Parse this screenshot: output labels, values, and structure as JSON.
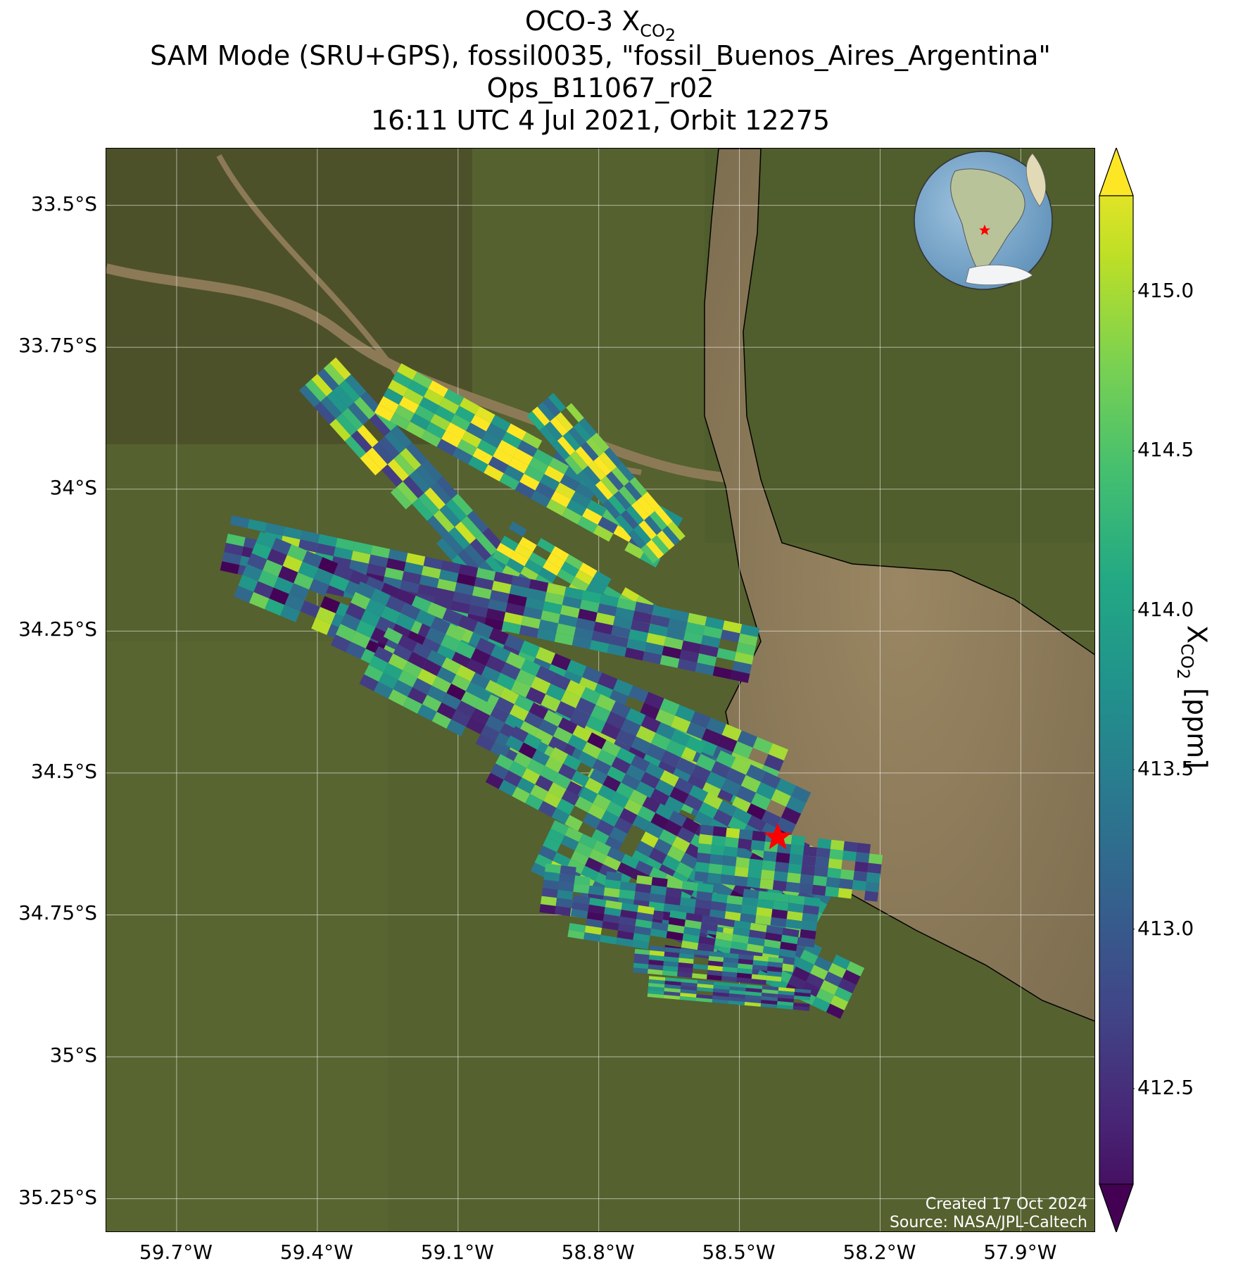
{
  "title": {
    "line1_prefix": "OCO-3 X",
    "line1_sub": "CO",
    "line1_sub2": "2",
    "line2": "SAM Mode (SRU+GPS), fossil0035, \"fossil_Buenos_Aires_Argentina\"",
    "line3": "Ops_B11067_r02",
    "line4": "16:11 UTC 4 Jul 2021, Orbit 12275"
  },
  "map": {
    "lat_ticks": [
      "33.5°S",
      "33.75°S",
      "34°S",
      "34.25°S",
      "34.5°S",
      "34.75°S",
      "35°S",
      "35.25°S"
    ],
    "lon_ticks": [
      "59.7°W",
      "59.4°W",
      "59.1°W",
      "58.8°W",
      "58.5°W",
      "58.2°W",
      "57.9°W"
    ],
    "lat_values": [
      -33.5,
      -33.75,
      -34.0,
      -34.25,
      -34.5,
      -34.75,
      -35.0,
      -35.25
    ],
    "lon_values": [
      -59.7,
      -59.4,
      -59.1,
      -58.8,
      -58.5,
      -58.2,
      -57.9
    ],
    "target_marker": "red-star",
    "footer_created": "Created 17 Oct 2024",
    "footer_source": "Source: NASA/JPL-Caltech",
    "inset": "globe-south-america-with-red-star"
  },
  "colorbar": {
    "colormap": "viridis",
    "ticks": [
      "415.0",
      "414.5",
      "414.0",
      "413.5",
      "413.0",
      "412.5"
    ],
    "tick_values": [
      415.0,
      414.5,
      414.0,
      413.5,
      413.0,
      412.5
    ],
    "range": [
      412.2,
      415.3
    ],
    "extend": "both",
    "label_prefix": "X",
    "label_sub": "CO",
    "label_sub2": "2",
    "label_suffix": " [ppm]"
  },
  "colors": {
    "land": "#4f5b2e",
    "water": "#8b7a58",
    "marker": "#ff0000",
    "viridis_low": "#440154",
    "viridis_mid": "#21918c",
    "viridis_high": "#fde725"
  }
}
